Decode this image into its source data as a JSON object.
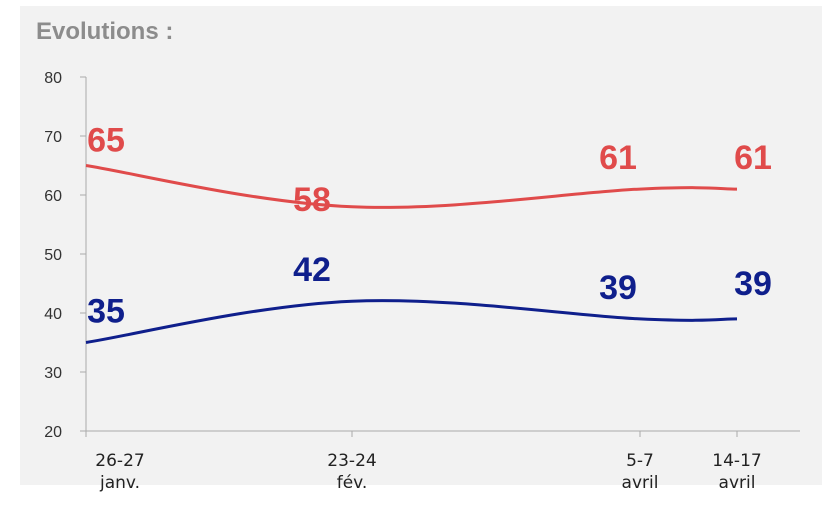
{
  "chart_data": {
    "type": "line",
    "title": "Evolutions :",
    "categories": [
      [
        "26-27",
        "janv."
      ],
      [
        "23-24",
        "fév."
      ],
      [
        "5-7",
        "avril"
      ],
      [
        "14-17",
        "avril"
      ]
    ],
    "x_positions_days": [
      0,
      28,
      69,
      78
    ],
    "ylim": [
      20,
      80
    ],
    "yticks": [
      20,
      30,
      40,
      50,
      60,
      70,
      80
    ],
    "grid": false,
    "series": [
      {
        "values": [
          65,
          58,
          61,
          61
        ],
        "color": "#e04b4b"
      },
      {
        "values": [
          35,
          42,
          39,
          39
        ],
        "color": "#0f1f8c"
      }
    ]
  }
}
